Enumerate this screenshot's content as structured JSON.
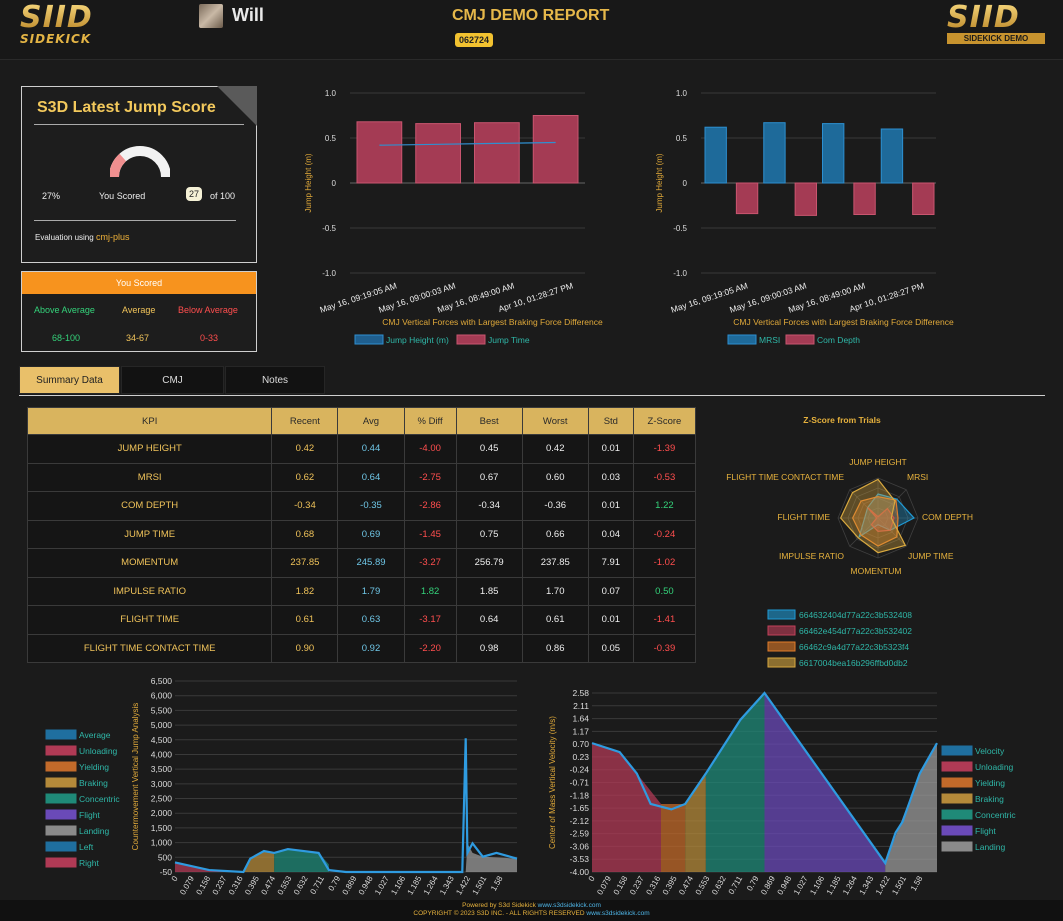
{
  "header": {
    "brand_left_main": "SIID",
    "brand_left_sub": "SIDEKICK",
    "user_name": "Will",
    "report_title": "CMJ DEMO REPORT",
    "report_code": "062724",
    "brand_right_main": "SIID",
    "brand_right_sub": "SIDEKICK DEMO"
  },
  "score_card": {
    "title": "S3D Latest Jump Score",
    "percent": "27%",
    "you_scored": "You Scored",
    "score": "27",
    "of_total": "of 100",
    "eval_prefix": "Evaluation using",
    "eval_model": "cmj-plus",
    "gauge_fraction": 0.27
  },
  "score_ranges": {
    "header": "You Scored",
    "above_label": "Above Average",
    "avg_label": "Average",
    "below_label": "Below Average",
    "above_range": "68-100",
    "avg_range": "34-67",
    "below_range": "0-33"
  },
  "tabs": [
    {
      "label": "Summary Data"
    },
    {
      "label": "CMJ"
    },
    {
      "label": "Notes"
    }
  ],
  "colors": {
    "gold": "#e7b23d",
    "blue": "#1f77b4",
    "red": "#c2405a",
    "orange": "#f7931e"
  },
  "chart_data": [
    {
      "type": "bar",
      "title": "CMJ Vertical Forces with Largest Braking Force Difference",
      "ylabel": "Jump Height (m)",
      "ylim": [
        -1.0,
        1.0
      ],
      "yticks": [
        "1.0",
        "0.5",
        "0",
        "-0.5",
        "-1.0"
      ],
      "categories": [
        "May 16, 09:19:05 AM",
        "May 16, 09:00:03 AM",
        "May 16, 08:49:00 AM",
        "Apr 10, 01:28:27 PM"
      ],
      "series": [
        {
          "name": "Jump Height (m)",
          "type": "line",
          "values": [
            0.42,
            0.43,
            0.44,
            0.45
          ]
        },
        {
          "name": "Jump Time",
          "type": "bar",
          "values": [
            0.68,
            0.66,
            0.67,
            0.75
          ]
        }
      ],
      "legend": [
        "Jump Height (m)",
        "Jump Time"
      ]
    },
    {
      "type": "bar",
      "title": "CMJ Vertical Forces with Largest Braking Force Difference",
      "ylabel": "Jump Height (m)",
      "ylim": [
        -1.0,
        1.0
      ],
      "yticks": [
        "1.0",
        "0.5",
        "0",
        "-0.5",
        "-1.0"
      ],
      "categories": [
        "May 16, 09:19:05 AM",
        "May 16, 09:00:03 AM",
        "May 16, 08:49:00 AM",
        "Apr 10, 01:28:27 PM"
      ],
      "series": [
        {
          "name": "MRSI",
          "values": [
            0.62,
            0.67,
            0.66,
            0.6
          ]
        },
        {
          "name": "Com Depth",
          "values": [
            -0.34,
            -0.36,
            -0.35,
            -0.35
          ]
        }
      ],
      "legend": [
        "MRSI",
        "Com Depth"
      ]
    },
    {
      "type": "radar",
      "title": "Z-Score from Trials",
      "axes": [
        "JUMP HEIGHT",
        "MRSI",
        "COM DEPTH",
        "JUMP TIME",
        "MOMENTUM",
        "IMPULSE RATIO",
        "FLIGHT TIME",
        "FLIGHT TIME CONTACT TIME"
      ],
      "series": [
        {
          "name": "664632404d77a22c3b532408",
          "color": "#1f9bd6",
          "values": [
            0.3,
            0.5,
            1.2,
            -0.2,
            -1.0,
            0.5,
            -0.5,
            -0.4
          ]
        },
        {
          "name": "66462e454d77a22c3b532402",
          "color": "#c2405a",
          "values": [
            -1.4,
            -0.5,
            -0.3,
            -0.2,
            -0.5,
            -0.8,
            -1.4,
            -0.4
          ]
        },
        {
          "name": "66462c9a4d77a22c3b5323f4",
          "color": "#e07b2a",
          "values": [
            0.1,
            0.4,
            0.0,
            0.5,
            0.6,
            0.3,
            0.4,
            0.3
          ]
        },
        {
          "name": "6617004bea16b296ffbd0db2",
          "color": "#d9a93f",
          "values": [
            1.4,
            0.3,
            -0.5,
            1.4,
            1.1,
            0.6,
            1.3,
            1.2
          ]
        }
      ]
    },
    {
      "type": "area",
      "ylabel": "Countermovement Vertical Jump Analysis",
      "yticks": [
        "6,500",
        "6,000",
        "5,500",
        "5,000",
        "4,500",
        "4,000",
        "3,500",
        "3,000",
        "2,500",
        "2,000",
        "1,500",
        "1,000",
        "500",
        "-50"
      ],
      "xticks": [
        "0",
        "0.079",
        "0.158",
        "0.237",
        "0.316",
        "0.395",
        "0.474",
        "0.553",
        "0.632",
        "0.711",
        "0.79",
        "0.869",
        "0.948",
        "1.027",
        "1.106",
        "1.185",
        "1.264",
        "1.343",
        "1.422",
        "1.501",
        "1.58"
      ],
      "legend": [
        "Average",
        "Unloading",
        "Yielding",
        "Braking",
        "Concentric",
        "Flight",
        "Landing",
        "Left",
        "Right"
      ]
    },
    {
      "type": "area",
      "ylabel": "Center of Mass Vertical Velocity (m/s)",
      "yticks": [
        "2.58",
        "2.11",
        "1.64",
        "1.17",
        "0.70",
        "0.23",
        "-0.24",
        "-0.71",
        "-1.18",
        "-1.65",
        "-2.12",
        "-2.59",
        "-3.06",
        "-3.53",
        "-4.00"
      ],
      "xticks": [
        "0",
        "0.079",
        "0.158",
        "0.237",
        "0.316",
        "0.395",
        "0.474",
        "0.553",
        "0.632",
        "0.711",
        "0.79",
        "0.869",
        "0.948",
        "1.027",
        "1.106",
        "1.185",
        "1.264",
        "1.343",
        "1.422",
        "1.501",
        "1.58"
      ],
      "legend": [
        "Velocity",
        "Unloading",
        "Yielding",
        "Braking",
        "Concentric",
        "Flight",
        "Landing"
      ]
    }
  ],
  "kpi_table": {
    "columns": [
      "KPI",
      "Recent",
      "Avg",
      "% Diff",
      "Best",
      "Worst",
      "Std",
      "Z-Score"
    ],
    "rows": [
      {
        "name": "JUMP HEIGHT",
        "recent": "0.42",
        "avg": "0.44",
        "diff": "-4.00",
        "best": "0.45",
        "worst": "0.42",
        "std": "0.01",
        "z": "-1.39",
        "diff_pos": false,
        "z_pos": false
      },
      {
        "name": "MRSI",
        "recent": "0.62",
        "avg": "0.64",
        "diff": "-2.75",
        "best": "0.67",
        "worst": "0.60",
        "std": "0.03",
        "z": "-0.53",
        "diff_pos": false,
        "z_pos": false
      },
      {
        "name": "COM DEPTH",
        "recent": "-0.34",
        "avg": "-0.35",
        "diff": "-2.86",
        "best": "-0.34",
        "worst": "-0.36",
        "std": "0.01",
        "z": "1.22",
        "diff_pos": false,
        "z_pos": true
      },
      {
        "name": "JUMP TIME",
        "recent": "0.68",
        "avg": "0.69",
        "diff": "-1.45",
        "best": "0.75",
        "worst": "0.66",
        "std": "0.04",
        "z": "-0.24",
        "diff_pos": false,
        "z_pos": false
      },
      {
        "name": "MOMENTUM",
        "recent": "237.85",
        "avg": "245.89",
        "diff": "-3.27",
        "best": "256.79",
        "worst": "237.85",
        "std": "7.91",
        "z": "-1.02",
        "diff_pos": false,
        "z_pos": false
      },
      {
        "name": "IMPULSE RATIO",
        "recent": "1.82",
        "avg": "1.79",
        "diff": "1.82",
        "best": "1.85",
        "worst": "1.70",
        "std": "0.07",
        "z": "0.50",
        "diff_pos": true,
        "z_pos": true
      },
      {
        "name": "FLIGHT TIME",
        "recent": "0.61",
        "avg": "0.63",
        "diff": "-3.17",
        "best": "0.64",
        "worst": "0.61",
        "std": "0.01",
        "z": "-1.41",
        "diff_pos": false,
        "z_pos": false
      },
      {
        "name": "FLIGHT TIME CONTACT TIME",
        "recent": "0.90",
        "avg": "0.92",
        "diff": "-2.20",
        "best": "0.98",
        "worst": "0.86",
        "std": "0.05",
        "z": "-0.39",
        "diff_pos": false,
        "z_pos": false
      }
    ]
  },
  "footer": {
    "powered": "Powered by S3d Sidekick",
    "powered_link": "www.s3dsidekick.com",
    "copyright": "COPYRIGHT © 2023 S3D INC. - ALL RIGHTS RESERVED",
    "copyright_link": "www.s3dsidekick.com"
  }
}
